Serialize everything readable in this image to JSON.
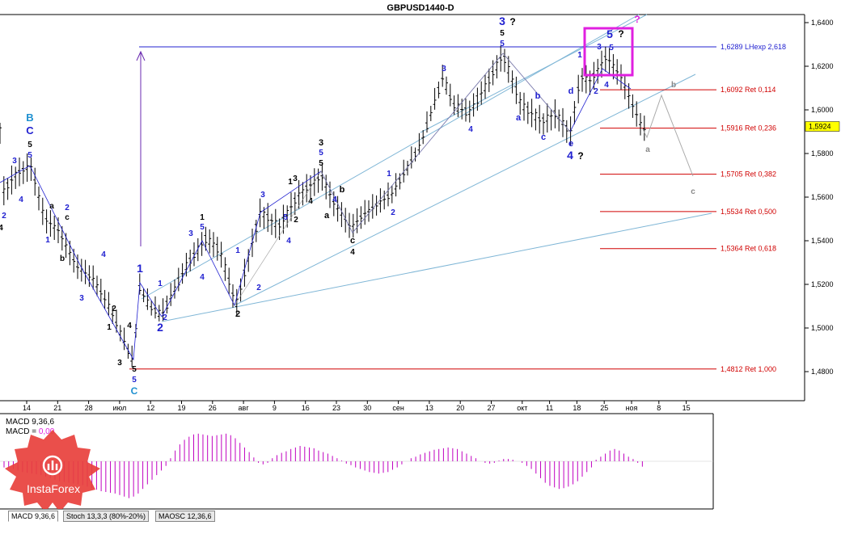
{
  "chart_data": {
    "type": "candlestick",
    "title": "GBPUSD1440-D",
    "price_axis": {
      "ylim": [
        1.4665,
        1.6475
      ],
      "ticks": [
        "1,6400",
        "1,6200",
        "1,6000",
        "1,5800",
        "1,5600",
        "1,5400",
        "1,5200",
        "1,5000",
        "1,4800"
      ],
      "tick_values": [
        1.64,
        1.62,
        1.6,
        1.58,
        1.56,
        1.54,
        1.52,
        1.5,
        1.48
      ],
      "current_price_label": "1,5924",
      "current_price": 1.5924
    },
    "time_axis": {
      "labels": [
        "14",
        "21",
        "28",
        "июл",
        "12",
        "19",
        "26",
        "авг",
        "9",
        "16",
        "23",
        "30",
        "сен",
        "13",
        "20",
        "27",
        "окт",
        "11",
        "18",
        "25",
        "ноя",
        "8",
        "15"
      ]
    },
    "fib_levels": [
      {
        "label": "1,6289 LHexp 2,618",
        "price": 1.6289,
        "color": "#2020d0"
      },
      {
        "label": "1,6092 Ret 0,114",
        "price": 1.6092,
        "color": "#d00000"
      },
      {
        "label": "1,5916 Ret 0,236",
        "price": 1.5916,
        "color": "#d00000"
      },
      {
        "label": "1,5705 Ret 0,382",
        "price": 1.5705,
        "color": "#d00000"
      },
      {
        "label": "1,5534 Ret 0,500",
        "price": 1.5534,
        "color": "#d00000"
      },
      {
        "label": "1,5364 Ret 0,618",
        "price": 1.5364,
        "color": "#d00000"
      },
      {
        "label": "1,4812 Ret 1,000",
        "price": 1.4812,
        "color": "#d00000"
      }
    ],
    "wave_labels": [
      {
        "t": "B",
        "x": 37,
        "y": 150,
        "c": "#1e90d0",
        "s": 13
      },
      {
        "t": "C",
        "x": 37,
        "y": 166,
        "c": "#2020d0",
        "s": 13
      },
      {
        "t": "5",
        "x": 37,
        "y": 182,
        "c": "#000",
        "s": 10
      },
      {
        "t": "5",
        "x": 37,
        "y": 195,
        "c": "#2020d0",
        "s": 10
      },
      {
        "t": "3",
        "x": 18,
        "y": 202,
        "c": "#2020d0",
        "s": 10
      },
      {
        "t": "4",
        "x": 26,
        "y": 250,
        "c": "#2020d0",
        "s": 10
      },
      {
        "t": "2",
        "x": 5,
        "y": 270,
        "c": "#2020d0",
        "s": 10
      },
      {
        "t": "4",
        "x": 1,
        "y": 285,
        "c": "#000",
        "s": 10
      },
      {
        "t": "a",
        "x": 64,
        "y": 258,
        "c": "#000",
        "s": 10
      },
      {
        "t": "c",
        "x": 83,
        "y": 272,
        "c": "#000",
        "s": 10
      },
      {
        "t": "2",
        "x": 83,
        "y": 260,
        "c": "#2020d0",
        "s": 10
      },
      {
        "t": "1",
        "x": 59,
        "y": 300,
        "c": "#2020d0",
        "s": 10
      },
      {
        "t": "b",
        "x": 77,
        "y": 323,
        "c": "#000",
        "s": 10
      },
      {
        "t": "4",
        "x": 128,
        "y": 318,
        "c": "#2020d0",
        "s": 10
      },
      {
        "t": "3",
        "x": 101,
        "y": 372,
        "c": "#2020d0",
        "s": 10
      },
      {
        "t": "2",
        "x": 141,
        "y": 385,
        "c": "#000",
        "s": 10
      },
      {
        "t": "1",
        "x": 135,
        "y": 408,
        "c": "#000",
        "s": 10
      },
      {
        "t": "4",
        "x": 160,
        "y": 406,
        "c": "#000",
        "s": 10
      },
      {
        "t": "3",
        "x": 148,
        "y": 452,
        "c": "#000",
        "s": 10
      },
      {
        "t": "5",
        "x": 166,
        "y": 460,
        "c": "#000",
        "s": 10
      },
      {
        "t": "5",
        "x": 166,
        "y": 473,
        "c": "#2020d0",
        "s": 10
      },
      {
        "t": "C",
        "x": 166,
        "y": 488,
        "c": "#1e90d0",
        "s": 12
      },
      {
        "t": "1",
        "x": 173,
        "y": 337,
        "c": "#2020d0",
        "s": 14
      },
      {
        "t": "1",
        "x": 198,
        "y": 354,
        "c": "#2020d0",
        "s": 10
      },
      {
        "t": "2",
        "x": 204,
        "y": 396,
        "c": "#2020d0",
        "s": 10
      },
      {
        "t": "2",
        "x": 198,
        "y": 410,
        "c": "#2020d0",
        "s": 14
      },
      {
        "t": "3",
        "x": 236,
        "y": 292,
        "c": "#2020d0",
        "s": 10
      },
      {
        "t": "1",
        "x": 250,
        "y": 272,
        "c": "#000",
        "s": 10
      },
      {
        "t": "5",
        "x": 250,
        "y": 284,
        "c": "#2020d0",
        "s": 10
      },
      {
        "t": "4",
        "x": 250,
        "y": 346,
        "c": "#2020d0",
        "s": 10
      },
      {
        "t": "1",
        "x": 294,
        "y": 313,
        "c": "#2020d0",
        "s": 10
      },
      {
        "t": "2",
        "x": 320,
        "y": 359,
        "c": "#2020d0",
        "s": 10
      },
      {
        "t": "2",
        "x": 294,
        "y": 392,
        "c": "#000",
        "s": 11
      },
      {
        "t": "3",
        "x": 325,
        "y": 244,
        "c": "#2020d0",
        "s": 10
      },
      {
        "t": "4",
        "x": 357,
        "y": 301,
        "c": "#2020d0",
        "s": 10
      },
      {
        "t": "5",
        "x": 353,
        "y": 272,
        "c": "#2020d0",
        "s": 10
      },
      {
        "t": "1",
        "x": 359,
        "y": 228,
        "c": "#000",
        "s": 10
      },
      {
        "t": "2",
        "x": 366,
        "y": 275,
        "c": "#000",
        "s": 10
      },
      {
        "t": "3",
        "x": 365,
        "y": 224,
        "c": "#000",
        "s": 10
      },
      {
        "t": "4",
        "x": 384,
        "y": 252,
        "c": "#000",
        "s": 10
      },
      {
        "t": "3",
        "x": 397,
        "y": 180,
        "c": "#000",
        "s": 11
      },
      {
        "t": "5",
        "x": 397,
        "y": 192,
        "c": "#2020d0",
        "s": 10
      },
      {
        "t": "5",
        "x": 397,
        "y": 205,
        "c": "#000",
        "s": 10
      },
      {
        "t": "b",
        "x": 423,
        "y": 238,
        "c": "#000",
        "s": 11
      },
      {
        "t": "a",
        "x": 404,
        "y": 270,
        "c": "#000",
        "s": 11
      },
      {
        "t": "4",
        "x": 414,
        "y": 250,
        "c": "#2020d0",
        "s": 10
      },
      {
        "t": "c",
        "x": 436,
        "y": 301,
        "c": "#000",
        "s": 11
      },
      {
        "t": "4",
        "x": 436,
        "y": 315,
        "c": "#000",
        "s": 10
      },
      {
        "t": "1",
        "x": 481,
        "y": 218,
        "c": "#2020d0",
        "s": 10
      },
      {
        "t": "2",
        "x": 486,
        "y": 266,
        "c": "#2020d0",
        "s": 10
      },
      {
        "t": "3",
        "x": 549,
        "y": 88,
        "c": "#2020d0",
        "s": 10
      },
      {
        "t": "4",
        "x": 582,
        "y": 163,
        "c": "#2020d0",
        "s": 10
      },
      {
        "t": "3",
        "x": 621,
        "y": 31,
        "c": "#2020d0",
        "s": 14
      },
      {
        "t": "?",
        "x": 634,
        "y": 31,
        "c": "#000",
        "s": 12
      },
      {
        "t": "5",
        "x": 621,
        "y": 44,
        "c": "#000",
        "s": 10
      },
      {
        "t": "5",
        "x": 621,
        "y": 57,
        "c": "#2020d0",
        "s": 10
      },
      {
        "t": "b",
        "x": 665,
        "y": 122,
        "c": "#2020d0",
        "s": 11
      },
      {
        "t": "a",
        "x": 641,
        "y": 149,
        "c": "#2020d0",
        "s": 11
      },
      {
        "t": "c",
        "x": 672,
        "y": 173,
        "c": "#2020d0",
        "s": 11
      },
      {
        "t": "d",
        "x": 706,
        "y": 116,
        "c": "#2020d0",
        "s": 11
      },
      {
        "t": "e",
        "x": 706,
        "y": 181,
        "c": "#2020d0",
        "s": 11
      },
      {
        "t": "4",
        "x": 705,
        "y": 197,
        "c": "#2020d0",
        "s": 14
      },
      {
        "t": "?",
        "x": 718,
        "y": 197,
        "c": "#000",
        "s": 12
      },
      {
        "t": "1",
        "x": 717,
        "y": 71,
        "c": "#2020d0",
        "s": 10
      },
      {
        "t": "2",
        "x": 737,
        "y": 116,
        "c": "#2020d0",
        "s": 10
      },
      {
        "t": "3",
        "x": 741,
        "y": 61,
        "c": "#2020d0",
        "s": 10
      },
      {
        "t": "4",
        "x": 750,
        "y": 108,
        "c": "#2020d0",
        "s": 10
      },
      {
        "t": "5",
        "x": 756,
        "y": 62,
        "c": "#2020d0",
        "s": 10
      },
      {
        "t": "5",
        "x": 754,
        "y": 47,
        "c": "#2020d0",
        "s": 14
      },
      {
        "t": "?",
        "x": 768,
        "y": 46,
        "c": "#000",
        "s": 12
      },
      {
        "t": "?",
        "x": 788,
        "y": 28,
        "c": "#e020e0",
        "s": 12
      },
      {
        "t": "b",
        "x": 833,
        "y": 108,
        "c": "#888",
        "s": 10
      },
      {
        "t": "a",
        "x": 801,
        "y": 188,
        "c": "#888",
        "s": 10
      },
      {
        "t": "c",
        "x": 857,
        "y": 240,
        "c": "#888",
        "s": 10
      }
    ],
    "macd": {
      "label_line1": "MACD 9,36,6",
      "label_line2_prefix": "MACD = ",
      "label_line2_value": "0,00",
      "values": [
        -8,
        -9,
        -10,
        -12,
        -14,
        -15,
        -16,
        -17,
        -18,
        -20,
        -22,
        -24,
        -26,
        -27,
        -28,
        -29,
        -30,
        -31,
        -33,
        -35,
        -37,
        -39,
        -40,
        -41,
        -42,
        -44,
        -46,
        -48,
        -46,
        -42,
        -36,
        -30,
        -24,
        -18,
        -12,
        -6,
        4,
        14,
        22,
        28,
        32,
        35,
        36,
        35,
        34,
        33,
        34,
        35,
        36,
        34,
        30,
        24,
        18,
        12,
        5,
        -2,
        -4,
        -2,
        4,
        8,
        11,
        13,
        16,
        18,
        20,
        19,
        18,
        17,
        14,
        12,
        10,
        7,
        4,
        1,
        -3,
        -5,
        -8,
        -10,
        -12,
        -14,
        -15,
        -16,
        -15,
        -14,
        -11,
        -8,
        -4,
        0,
        4,
        6,
        9,
        11,
        13,
        15,
        16,
        17,
        18,
        17,
        16,
        13,
        10,
        7,
        4,
        0,
        -2,
        -3,
        -2,
        1,
        3,
        3,
        2,
        0,
        -2,
        -6,
        -10,
        -16,
        -22,
        -28,
        -32,
        -34,
        -36,
        -35,
        -33,
        -30,
        -26,
        -20,
        -14,
        -8,
        2,
        6,
        10,
        14,
        16,
        14,
        10,
        6,
        3,
        -2,
        -7
      ]
    },
    "macd_ylim": [
      -60,
      60
    ],
    "indicator_tabs": [
      "MACD 9,36,6",
      "Stoch 13,3,3 (80%-20%)",
      "MAOSC 12,36,6"
    ],
    "logo_text": "InstaForex",
    "colors": {
      "fib_red": "#d00000",
      "fib_blue": "#2020d0",
      "channel": "#7fb6d6",
      "wave_line": "#2020d0",
      "forecast": "#aaaaaa",
      "highlight_box": "#e020e0",
      "macd_bar": "#c000c0",
      "logo": "#e8403c",
      "price_box": "#ffff00"
    }
  }
}
